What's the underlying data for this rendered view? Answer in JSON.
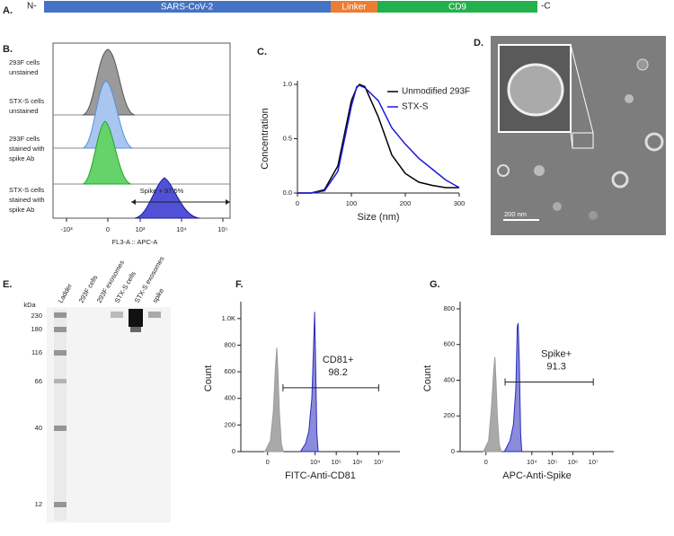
{
  "panels": {
    "A": {
      "letter": "A.",
      "n_term": "N-",
      "segments": [
        "SARS-CoV-2",
        "Linker",
        "CD9"
      ],
      "c_term": "-C"
    },
    "B": {
      "letter": "B.",
      "rows": [
        [
          "293F cells",
          "unstained"
        ],
        [
          "STX-S cells",
          "unstained"
        ],
        [
          "293F cells",
          "stained with",
          "spike Ab"
        ],
        [
          "STX-S cells",
          "stained with",
          "spike Ab"
        ]
      ],
      "xticks": [
        "-10³",
        "0",
        "10³",
        "10⁴",
        "10⁵"
      ],
      "xlabel": "FL3-A :: APC-A",
      "gate_label": "Spike + 97.5%"
    },
    "C": {
      "letter": "C."
    },
    "D": {
      "letter": "D.",
      "scale_bar": "200 nm"
    },
    "E": {
      "letter": "E.",
      "unit": "kDa",
      "lanes": [
        "Ladder",
        "293F cells",
        "293F exosomes",
        "STX-S cells",
        "STX-S exosomes",
        "spike"
      ],
      "markers": [
        230,
        180,
        116,
        66,
        40,
        12
      ]
    },
    "F": {
      "letter": "F."
    },
    "G": {
      "letter": "G."
    }
  },
  "chart_data": [
    {
      "type": "line",
      "xlabel": "Size (nm)",
      "ylabel": "Concentration",
      "x": [
        0,
        25,
        50,
        75,
        100,
        110,
        115,
        125,
        150,
        175,
        200,
        225,
        250,
        275,
        300
      ],
      "series": [
        {
          "name": "Unmodified 293F",
          "color": "#000000",
          "values": [
            0,
            0,
            0.03,
            0.25,
            0.85,
            0.97,
            1.0,
            0.98,
            0.7,
            0.35,
            0.18,
            0.1,
            0.07,
            0.05,
            0.05
          ]
        },
        {
          "name": "STX-S",
          "color": "#1a1ad6",
          "values": [
            0,
            0,
            0.02,
            0.2,
            0.8,
            0.98,
            0.99,
            0.97,
            0.85,
            0.6,
            0.45,
            0.32,
            0.22,
            0.12,
            0.05
          ]
        }
      ],
      "xlim": [
        0,
        300
      ],
      "xticks": [
        0,
        100,
        200,
        300
      ],
      "ylim": [
        0,
        1
      ],
      "yticks": [
        {
          "value": 0,
          "label": "0.0"
        },
        0.5,
        {
          "value": 1,
          "label": "1.0"
        }
      ],
      "legend": "upper right"
    },
    {
      "type": "area",
      "xlabel": "FITC-Anti-CD81",
      "ylabel": "Count",
      "xscale": "biexponential",
      "series": [
        {
          "color": "#9a9a9a",
          "x": [
            -20,
            20,
            50,
            80,
            100,
            120,
            150,
            200,
            260
          ],
          "values": [
            0,
            80,
            300,
            650,
            780,
            600,
            300,
            60,
            0
          ]
        },
        {
          "color": "#2b2bbf",
          "x": [
            2000,
            3500,
            5000,
            7000,
            8500,
            9500,
            10500,
            12000,
            14000
          ],
          "values": [
            0,
            60,
            150,
            400,
            800,
            1050,
            700,
            150,
            0
          ]
        }
      ],
      "xlim": [
        -1000,
        100000000
      ],
      "xticks": [
        0,
        {
          "value": 10000,
          "label": "10⁴"
        },
        {
          "value": 100000,
          "label": "10⁵"
        },
        {
          "value": 1000000,
          "label": "10⁶"
        },
        {
          "value": 10000000,
          "label": "10⁷"
        }
      ],
      "ylim": [
        0,
        1100
      ],
      "yticks": [
        0,
        200,
        400,
        600,
        800,
        {
          "value": 1000,
          "label": "1.0K"
        }
      ],
      "gate": {
        "range": [
          250,
          10000000
        ],
        "y": 480,
        "label": "CD81+",
        "percent": 98.2
      }
    },
    {
      "type": "area",
      "xlabel": "APC-Anti-Spike",
      "ylabel": "Count",
      "xscale": "biexponential",
      "series": [
        {
          "color": "#9a9a9a",
          "x": [
            -20,
            20,
            50,
            80,
            100,
            120,
            150,
            200,
            260
          ],
          "values": [
            0,
            60,
            250,
            450,
            530,
            400,
            200,
            40,
            0
          ]
        },
        {
          "color": "#2b2bbf",
          "x": [
            400,
            800,
            1200,
            1600,
            1900,
            2100,
            2400,
            2800,
            3200
          ],
          "values": [
            0,
            60,
            150,
            350,
            700,
            720,
            500,
            100,
            0
          ]
        }
      ],
      "xlim": [
        -1000,
        100000000
      ],
      "xticks": [
        0,
        {
          "value": 10000,
          "label": "10⁴"
        },
        {
          "value": 100000,
          "label": "10⁵"
        },
        {
          "value": 1000000,
          "label": "10⁶"
        },
        {
          "value": 10000000,
          "label": "10⁷"
        }
      ],
      "ylim": [
        0,
        820
      ],
      "yticks": [
        0,
        200,
        400,
        600,
        800
      ],
      "gate": {
        "range": [
          440,
          10000000
        ],
        "y": 390,
        "label": "Spike+",
        "percent": 91.3
      }
    }
  ]
}
